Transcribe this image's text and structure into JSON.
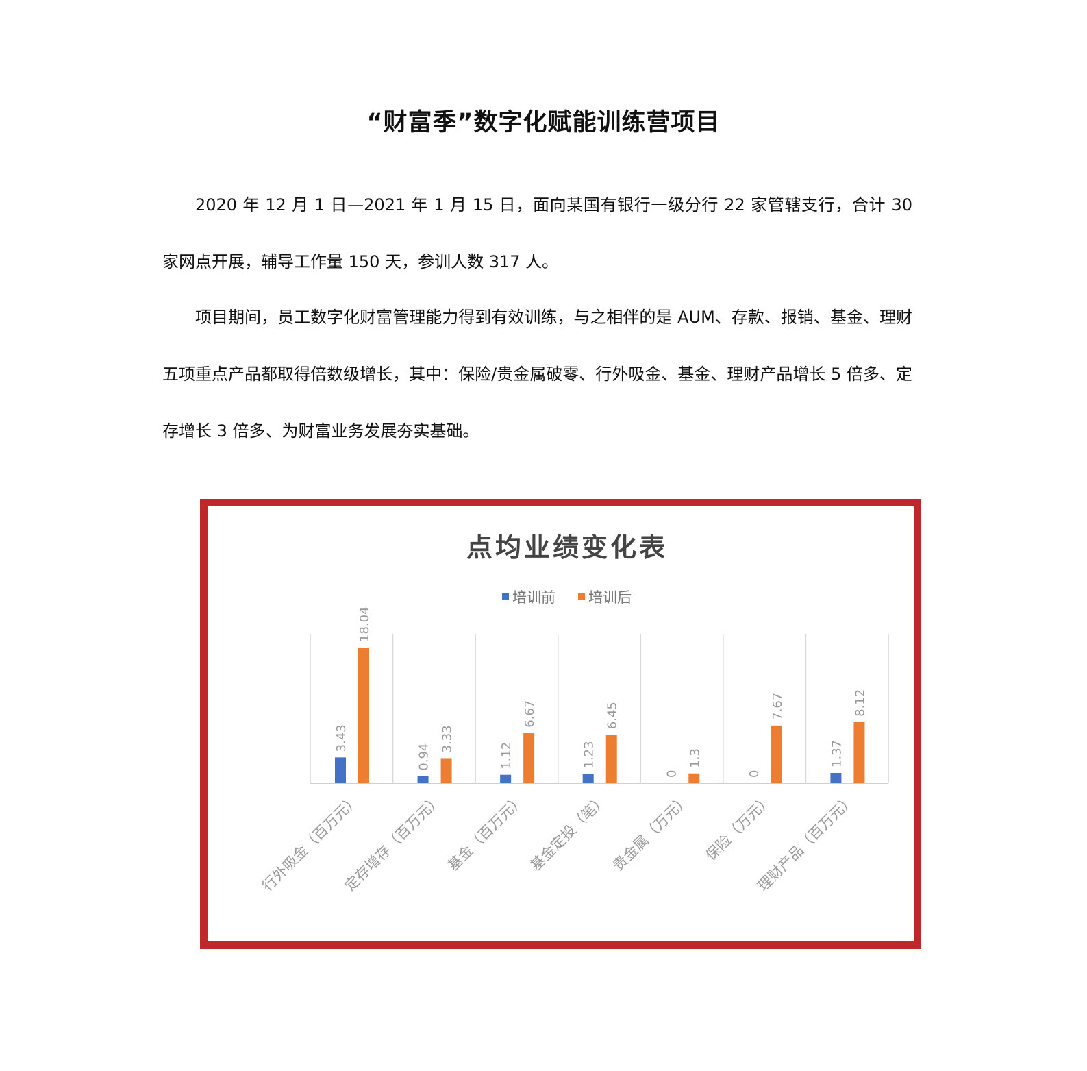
{
  "document": {
    "title": "“财富季”数字化赋能训练营项目",
    "paragraphs": [
      "2020 年 12 月 1 日—2021 年 1 月 15 日，面向某国有银行一级分行 22 家管辖支行，合计 30 家网点开展，辅导工作量 150 天，参训人数 317 人。",
      "项目期间，员工数字化财富管理能力得到有效训练，与之相伴的是 AUM、存款、报销、基金、理财五项重点产品都取得倍数级增长，其中：保险/贵金属破零、行外吸金、基金、理财产品增长 5 倍多、定存增长 3 倍多、为财富业务发展夯实基础。"
    ]
  },
  "frame_color": "#c0272d",
  "chart_data": {
    "type": "bar",
    "title": "点均业绩变化表",
    "categories": [
      "行外吸金（百万元）",
      "定存增存（百万元）",
      "基金（百万元）",
      "基金定投（笔）",
      "贵金属（万元）",
      "保险（万元）",
      "理财产品（百万元）"
    ],
    "series": [
      {
        "name": "培训前",
        "color": "#4472c4",
        "values": [
          3.43,
          0.94,
          1.12,
          1.23,
          0,
          0,
          1.37
        ]
      },
      {
        "name": "培训后",
        "color": "#ed7d31",
        "values": [
          18.04,
          3.33,
          6.67,
          6.45,
          1.3,
          7.67,
          8.12
        ]
      }
    ],
    "data_labels": true,
    "legend_position": "top",
    "y_axis_visible": false,
    "grid": "vertical category separators"
  }
}
